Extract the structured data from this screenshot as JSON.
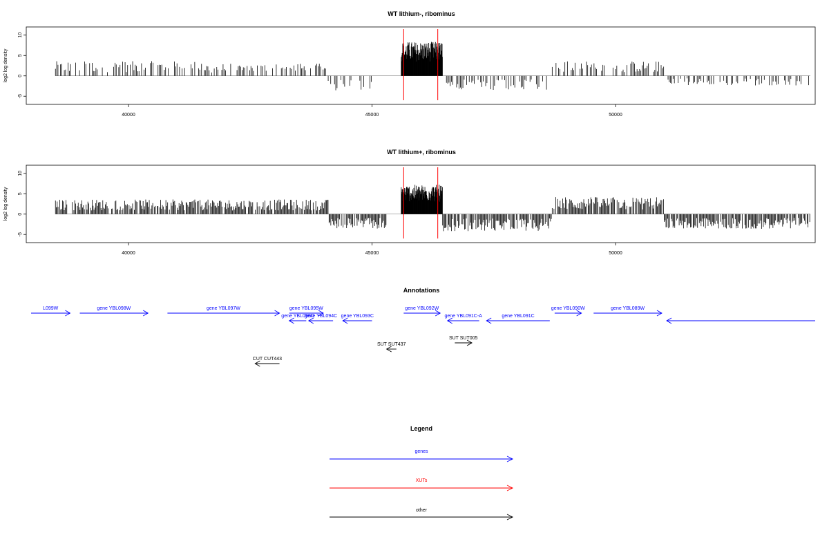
{
  "panels": [
    {
      "title": "WT lithium-, ribominus",
      "ylabel": "log2 log density",
      "xlim": [
        38000,
        55000
      ],
      "ylim": [
        -7,
        12
      ],
      "yticks": [
        -5,
        0,
        5,
        10
      ],
      "xticks": [
        40000,
        45000,
        50000
      ],
      "markers": [
        45650,
        46350
      ],
      "density": "sparse"
    },
    {
      "title": "WT lithium+, ribominus",
      "ylabel": "log2 log density",
      "xlim": [
        38000,
        55000
      ],
      "ylim": [
        -7,
        12
      ],
      "yticks": [
        -5,
        0,
        5,
        10
      ],
      "xticks": [
        40000,
        45000,
        50000
      ],
      "markers": [
        45650,
        46350
      ],
      "density": "dense"
    }
  ],
  "chart_data": [
    {
      "type": "bar",
      "title": "WT lithium-, ribominus",
      "ylabel": "log2 log density",
      "xlabel": "",
      "xlim": [
        38000,
        55000
      ],
      "ylim": [
        -7,
        12
      ],
      "grid": false,
      "segments": [
        {
          "x_start": 38500,
          "x_end": 41500,
          "approx_value": 3
        },
        {
          "x_start": 41500,
          "x_end": 44100,
          "approx_value": 2.5
        },
        {
          "x_start": 44100,
          "x_end": 45000,
          "approx_value": -3
        },
        {
          "x_start": 45600,
          "x_end": 46450,
          "approx_value": 7
        },
        {
          "x_start": 46450,
          "x_end": 48700,
          "approx_value": -3
        },
        {
          "x_start": 48700,
          "x_end": 51000,
          "approx_value": 3
        },
        {
          "x_start": 51000,
          "x_end": 54000,
          "approx_value": -2
        }
      ]
    },
    {
      "type": "bar",
      "title": "WT lithium+, ribominus",
      "ylabel": "log2 log density",
      "xlabel": "",
      "xlim": [
        38000,
        55000
      ],
      "ylim": [
        -7,
        12
      ],
      "grid": false,
      "segments": [
        {
          "x_start": 38500,
          "x_end": 44100,
          "approx_value": 3
        },
        {
          "x_start": 44100,
          "x_end": 45300,
          "approx_value": -3
        },
        {
          "x_start": 45600,
          "x_end": 46450,
          "approx_value": 6
        },
        {
          "x_start": 46450,
          "x_end": 48700,
          "approx_value": -3.5
        },
        {
          "x_start": 48700,
          "x_end": 51000,
          "approx_value": 3.5
        },
        {
          "x_start": 51000,
          "x_end": 54000,
          "approx_value": -3
        }
      ]
    }
  ],
  "annotations": {
    "title": "Annotations",
    "genes": [
      {
        "label": "L099W",
        "x1": 38000,
        "x2": 38800,
        "dir": "right",
        "row": 0
      },
      {
        "label": "gene YBL098W",
        "x1": 39000,
        "x2": 40400,
        "dir": "right",
        "row": 0
      },
      {
        "label": "gene YBL097W",
        "x1": 40800,
        "x2": 43100,
        "dir": "right",
        "row": 0
      },
      {
        "label": "gene YBL095W",
        "x1": 43300,
        "x2": 44000,
        "dir": "right",
        "row": 0
      },
      {
        "label": "gene YBL096C",
        "x1": 43300,
        "x2": 43650,
        "dir": "left",
        "row": 1
      },
      {
        "label": "gene YBL094C",
        "x1": 43700,
        "x2": 44200,
        "dir": "left",
        "row": 1
      },
      {
        "label": "gene YBL093C",
        "x1": 44400,
        "x2": 45000,
        "dir": "left",
        "row": 1
      },
      {
        "label": "gene YBL092W",
        "x1": 45650,
        "x2": 46400,
        "dir": "right",
        "row": 0
      },
      {
        "label": "gene YBL091C-A",
        "x1": 46550,
        "x2": 47200,
        "dir": "left",
        "row": 1
      },
      {
        "label": "gene YBL091C",
        "x1": 47350,
        "x2": 48650,
        "dir": "left",
        "row": 1
      },
      {
        "label": "gene YBL090W",
        "x1": 48750,
        "x2": 49300,
        "dir": "right",
        "row": 0
      },
      {
        "label": "gene YBL089W",
        "x1": 49550,
        "x2": 50950,
        "dir": "right",
        "row": 0
      },
      {
        "label": "",
        "x1": 51050,
        "x2": 55000,
        "dir": "left",
        "row": 1
      }
    ],
    "others": [
      {
        "label": "SUT SUT437",
        "x1": 45300,
        "x2": 45500,
        "dir": "left",
        "row": 2
      },
      {
        "label": "SUT SUT005",
        "x1": 46700,
        "x2": 47050,
        "dir": "right",
        "row": 3
      },
      {
        "label": "CUT CUT443",
        "x1": 42600,
        "x2": 43100,
        "dir": "left",
        "row": 4
      }
    ]
  },
  "legend": {
    "title": "Legend",
    "items": [
      {
        "label": "genes",
        "color": "#0000ff"
      },
      {
        "label": "XUTs",
        "color": "#ff0000"
      },
      {
        "label": "other",
        "color": "#000000"
      }
    ]
  },
  "colors": {
    "bars": "#000000",
    "marker": "#ff0000",
    "gene": "#0000ff",
    "other": "#000000",
    "axis": "#000000",
    "baseline": "#808080"
  }
}
